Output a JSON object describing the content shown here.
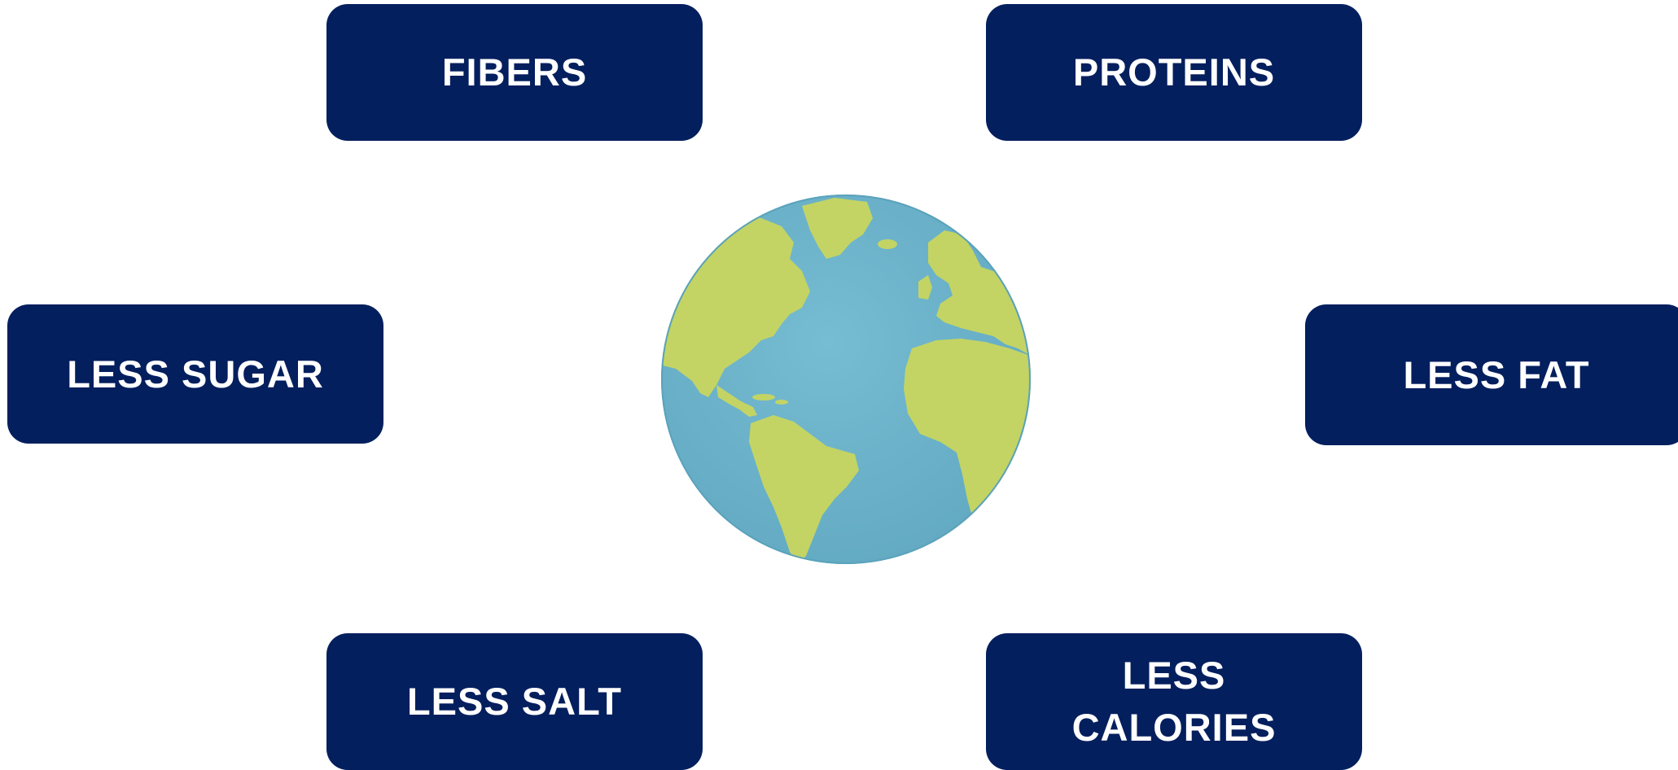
{
  "diagram": {
    "center": {
      "icon": "globe-icon"
    },
    "nodes": [
      {
        "id": "fibers",
        "label": "FIBERS"
      },
      {
        "id": "proteins",
        "label": "PROTEINS"
      },
      {
        "id": "sugar",
        "label": "LESS SUGAR"
      },
      {
        "id": "fat",
        "label": "LESS FAT"
      },
      {
        "id": "salt",
        "label": "LESS SALT"
      },
      {
        "id": "calories",
        "label": "LESS\nCALORIES"
      }
    ]
  },
  "colors": {
    "box_fill": "#041f5e",
    "box_text": "#ffffff",
    "ocean": "#6eb4cb",
    "land": "#c3d464",
    "background": "#ffffff"
  }
}
